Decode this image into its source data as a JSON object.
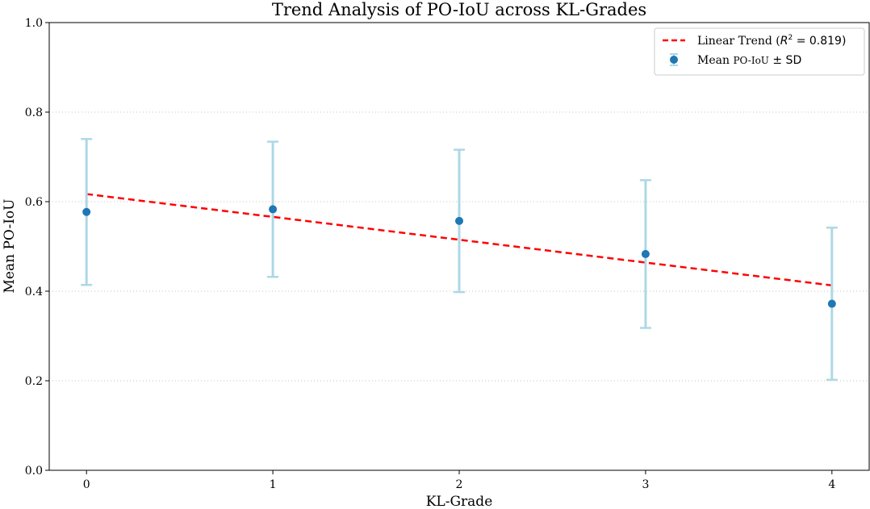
{
  "chart_data": {
    "type": "scatter",
    "title": "Trend Analysis of PO-IoU across KL-Grades",
    "xlabel": "KL-Grade",
    "ylabel": "Mean PO-IoU",
    "x": [
      0,
      1,
      2,
      3,
      4
    ],
    "x_tick_labels": [
      "0",
      "1",
      "2",
      "3",
      "4"
    ],
    "xlim": [
      -0.2,
      4.2
    ],
    "ylim": [
      0.0,
      1.0
    ],
    "y_ticks": [
      0.0,
      0.2,
      0.4,
      0.6,
      0.8,
      1.0
    ],
    "y_tick_labels": [
      "0.0",
      "0.2",
      "0.4",
      "0.6",
      "0.8",
      "1.0"
    ],
    "grid": "horizontal dotted",
    "legend_position": "top-right",
    "series": [
      {
        "name": "Mean PO-IoU ± SD",
        "kind": "errorbar",
        "values": [
          0.577,
          0.583,
          0.557,
          0.483,
          0.372
        ],
        "sd": [
          0.163,
          0.151,
          0.159,
          0.165,
          0.17
        ],
        "marker_color": "#1f77b4",
        "error_color": "#add8e6"
      },
      {
        "name": "Linear Trend (R² = 0.819)",
        "kind": "trendline",
        "x": [
          0,
          4
        ],
        "values": [
          0.617,
          0.413
        ],
        "line_color": "#ff0000",
        "style": "dashed"
      }
    ],
    "legend": {
      "trend_label_prefix": "Linear Trend (",
      "trend_label_r": "R",
      "trend_label_exp": "2",
      "trend_label_rest": " = 0.819)",
      "mean_label_prefix": "Mean ",
      "mean_label_small": "PO-IoU",
      "mean_label_suffix": " ± SD"
    }
  }
}
